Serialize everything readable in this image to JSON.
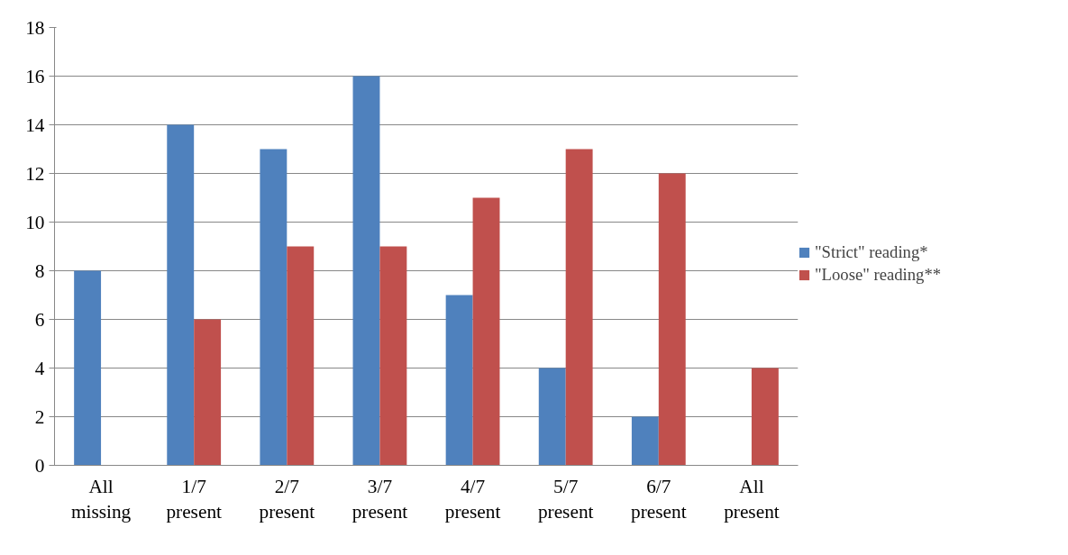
{
  "chart_data": {
    "type": "bar",
    "categories": [
      "All missing",
      "1/7 present",
      "2/7 present",
      "3/7 present",
      "4/7 present",
      "5/7 present",
      "6/7 present",
      "All present"
    ],
    "series": [
      {
        "name": "\"Strict\" reading*",
        "color": "#4f81bd",
        "values": [
          8,
          14,
          13,
          16,
          7,
          4,
          2,
          0
        ]
      },
      {
        "name": "\"Loose\" reading**",
        "color": "#c0504d",
        "values": [
          0,
          6,
          9,
          9,
          11,
          13,
          12,
          4
        ]
      }
    ],
    "ylim": [
      0,
      18
    ],
    "yticks": [
      0,
      2,
      4,
      6,
      8,
      10,
      12,
      14,
      16,
      18
    ],
    "grid": "y",
    "legend": "right"
  }
}
